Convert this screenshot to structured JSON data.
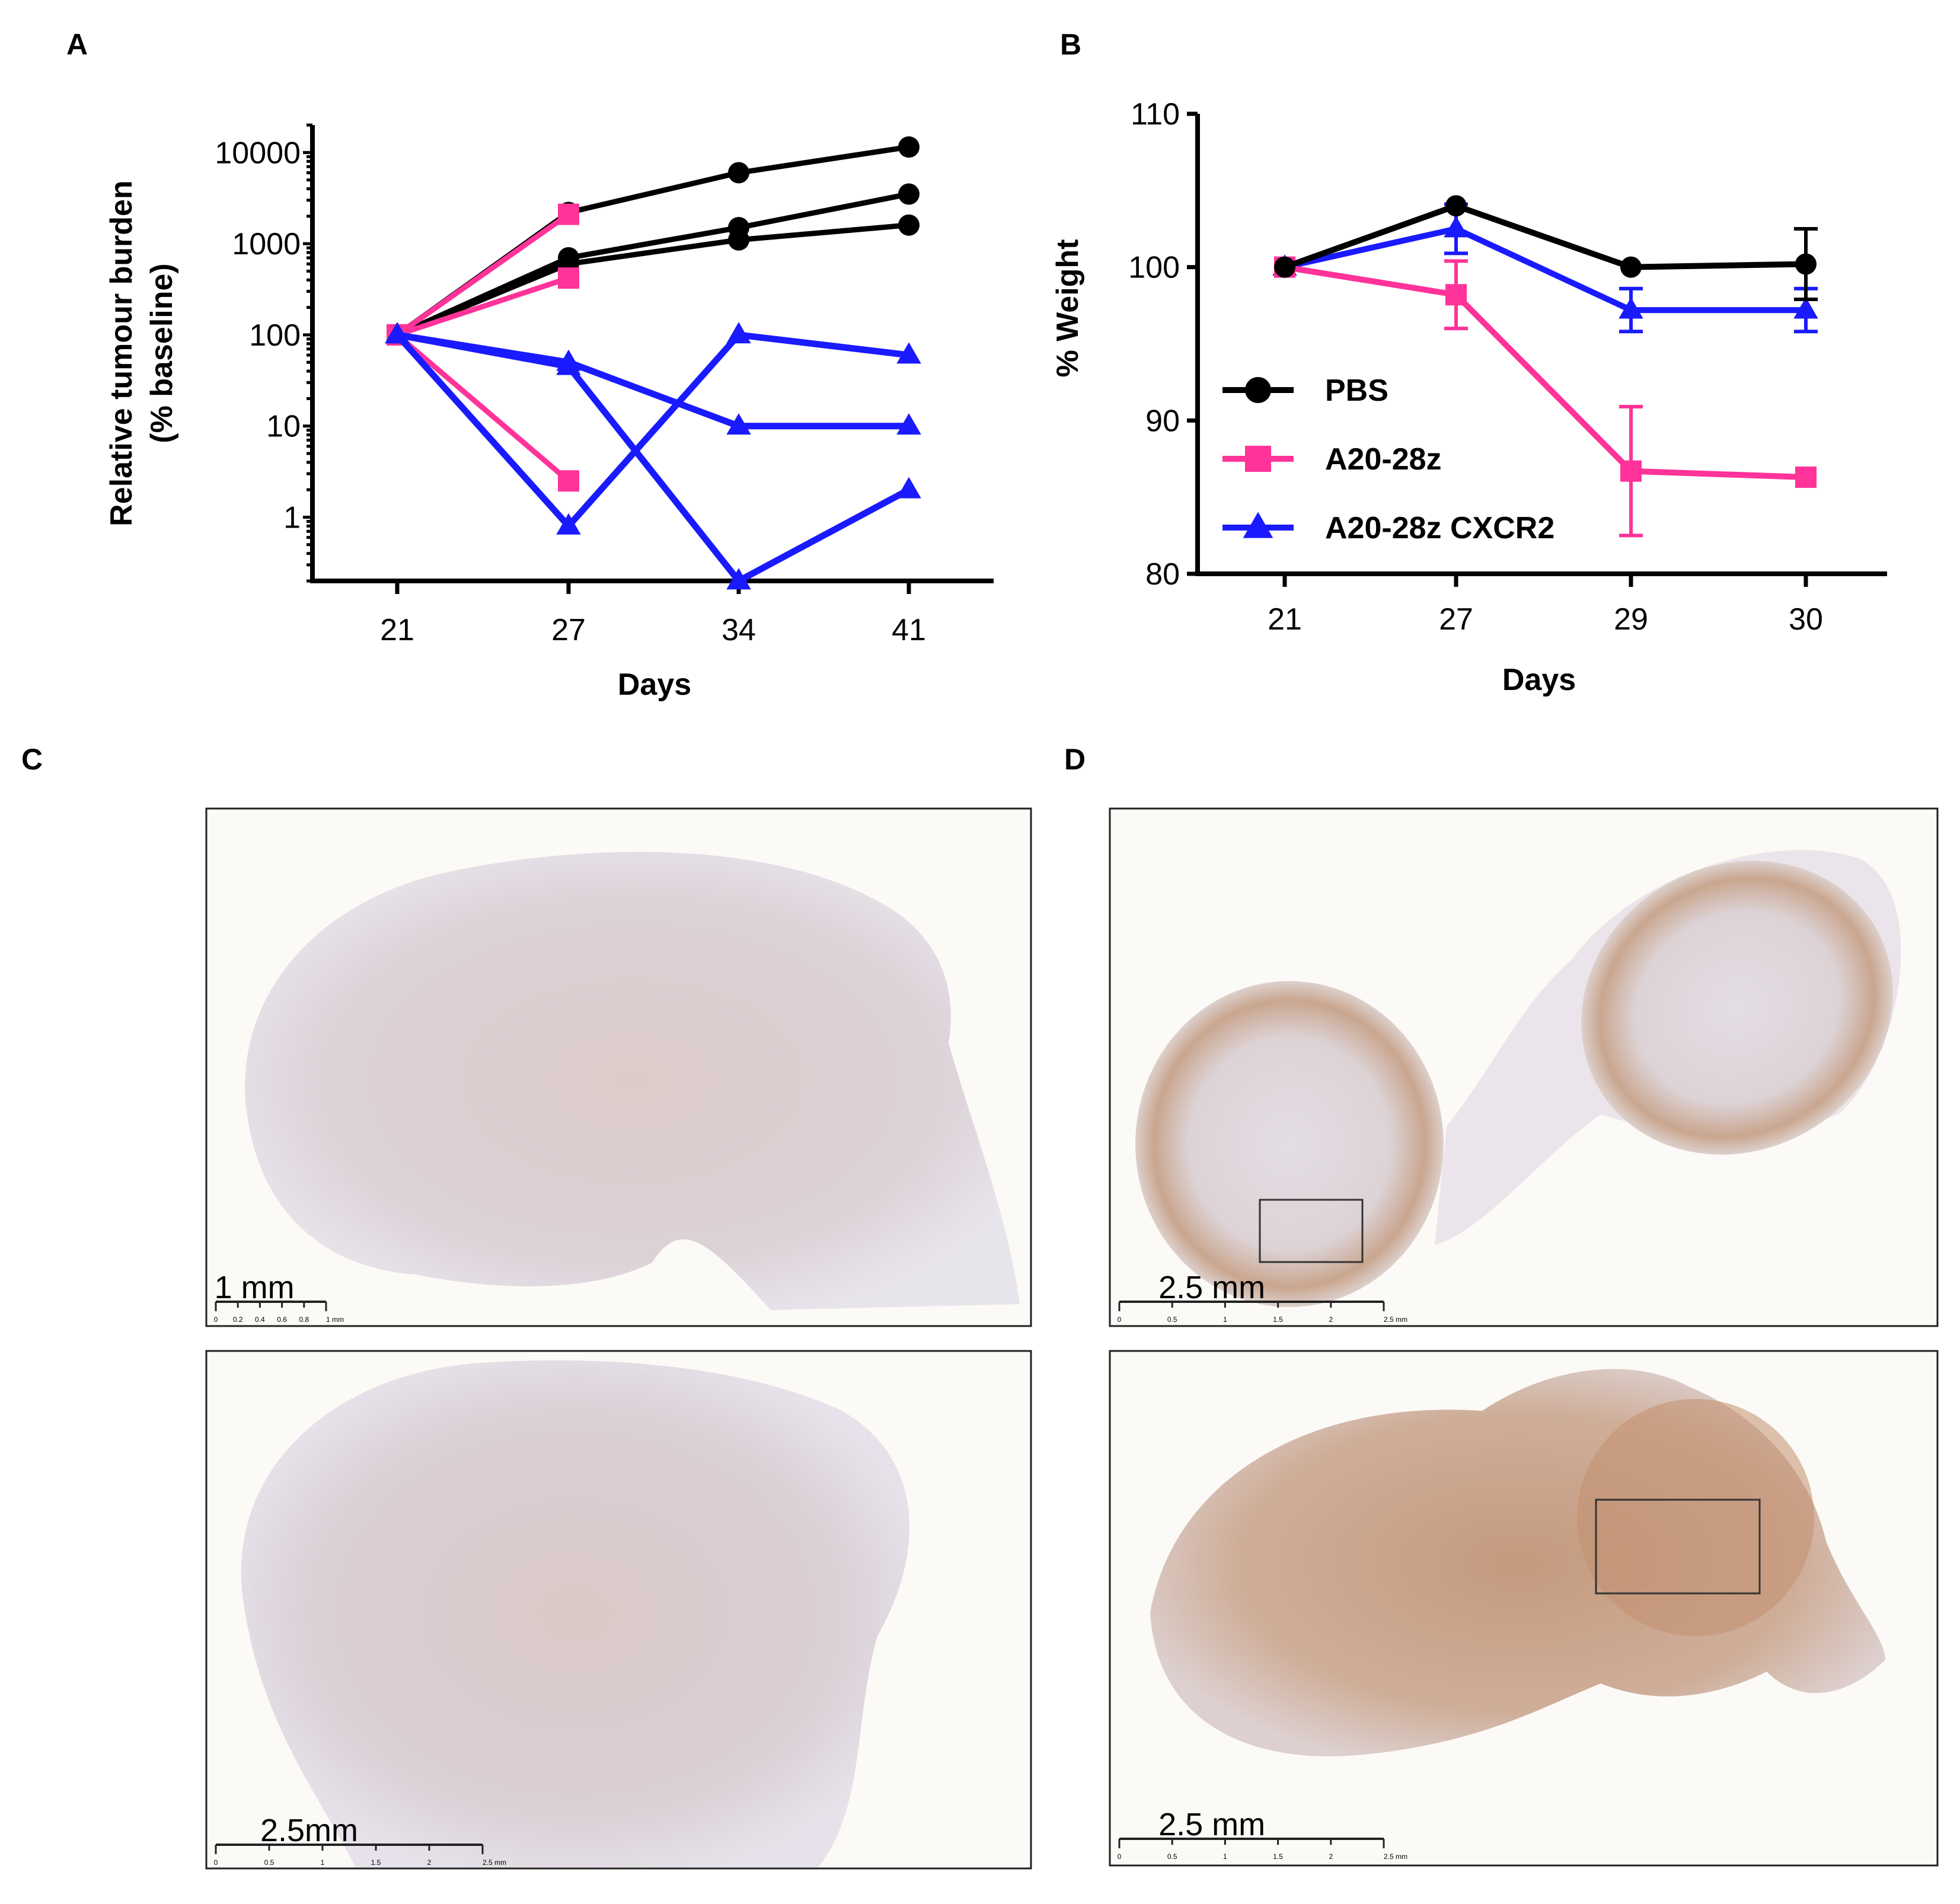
{
  "panel_labels": {
    "a": "A",
    "b": "B",
    "c": "C",
    "d": "D"
  },
  "colors": {
    "PBS": "#000000",
    "A20-28z": "#ff3399",
    "A20-28z CXCR2": "#1a1aff"
  },
  "chart_data": [
    {
      "type": "line",
      "panel": "A",
      "xlabel": "Days",
      "ylabel": "Relative tumour burden",
      "ylabel2": "(% baseline)",
      "yscale": "log",
      "ylim": [
        0.2,
        20000
      ],
      "x_categories": [
        "21",
        "27",
        "34",
        "41"
      ],
      "y_ticks": [
        "10000",
        "1000",
        "100",
        "10",
        "1"
      ],
      "y_tick_values": [
        10000,
        1000,
        100,
        10,
        1
      ],
      "series": [
        {
          "group": "PBS",
          "marker": "circle",
          "x": [
            "21",
            "27",
            "34",
            "41"
          ],
          "values": [
            100,
            2200,
            6000,
            11500
          ]
        },
        {
          "group": "PBS",
          "marker": "circle",
          "x": [
            "21",
            "27",
            "34",
            "41"
          ],
          "values": [
            100,
            700,
            1500,
            3500
          ]
        },
        {
          "group": "PBS",
          "marker": "circle",
          "x": [
            "21",
            "27",
            "34",
            "41"
          ],
          "values": [
            100,
            600,
            1100,
            1600
          ]
        },
        {
          "group": "A20-28z",
          "marker": "square",
          "x": [
            "21",
            "27"
          ],
          "values": [
            100,
            2100
          ]
        },
        {
          "group": "A20-28z",
          "marker": "square",
          "x": [
            "21",
            "27"
          ],
          "values": [
            100,
            420
          ]
        },
        {
          "group": "A20-28z",
          "marker": "square",
          "x": [
            "21",
            "27"
          ],
          "values": [
            100,
            2.5
          ]
        },
        {
          "group": "A20-28z CXCR2",
          "marker": "triangle",
          "x": [
            "21",
            "27",
            "34",
            "41"
          ],
          "values": [
            100,
            0.8,
            100,
            60
          ]
        },
        {
          "group": "A20-28z CXCR2",
          "marker": "triangle",
          "x": [
            "21",
            "27",
            "34",
            "41"
          ],
          "values": [
            100,
            50,
            10,
            10
          ]
        },
        {
          "group": "A20-28z CXCR2",
          "marker": "triangle",
          "x": [
            "21",
            "27",
            "34",
            "41"
          ],
          "values": [
            100,
            45,
            0.2,
            2
          ]
        }
      ]
    },
    {
      "type": "line",
      "panel": "B",
      "xlabel": "Days",
      "ylabel": "% Weight",
      "ylim": [
        80,
        110
      ],
      "x_categories": [
        "21",
        "27",
        "29",
        "30"
      ],
      "y_ticks": [
        "110",
        "100",
        "90",
        "80"
      ],
      "y_tick_values": [
        110,
        100,
        90,
        80
      ],
      "legend_position": "center-left",
      "series": [
        {
          "name": "PBS",
          "marker": "circle",
          "values": [
            100,
            104,
            100,
            100.2
          ],
          "errors": [
            0,
            0,
            0,
            2.3
          ]
        },
        {
          "name": "A20-28z",
          "marker": "square",
          "values": [
            100,
            98.2,
            86.7,
            86.3
          ],
          "errors": [
            0,
            2.2,
            4.2,
            0
          ]
        },
        {
          "name": "A20-28z CXCR2",
          "marker": "triangle",
          "values": [
            100,
            102.5,
            97.2,
            97.2
          ],
          "errors": [
            0,
            1.6,
            1.4,
            1.4
          ]
        }
      ]
    }
  ],
  "micrographs": {
    "c_top": {
      "scale_label": "1 mm",
      "scale_ticks": [
        "0",
        "0.2",
        "0.4",
        "0.6",
        "0.8",
        "1 mm"
      ]
    },
    "c_bottom": {
      "scale_label": "2.5mm",
      "scale_ticks": [
        "0",
        "0.5",
        "1",
        "1.5",
        "2",
        "2.5 mm"
      ]
    },
    "d_top": {
      "scale_label": "2.5 mm",
      "scale_ticks": [
        "0",
        "0.5",
        "1",
        "1.5",
        "2",
        "2.5 mm"
      ]
    },
    "d_bottom": {
      "scale_label": "2.5 mm",
      "scale_ticks": [
        "0",
        "0.5",
        "1",
        "1.5",
        "2",
        "2.5 mm"
      ]
    }
  }
}
